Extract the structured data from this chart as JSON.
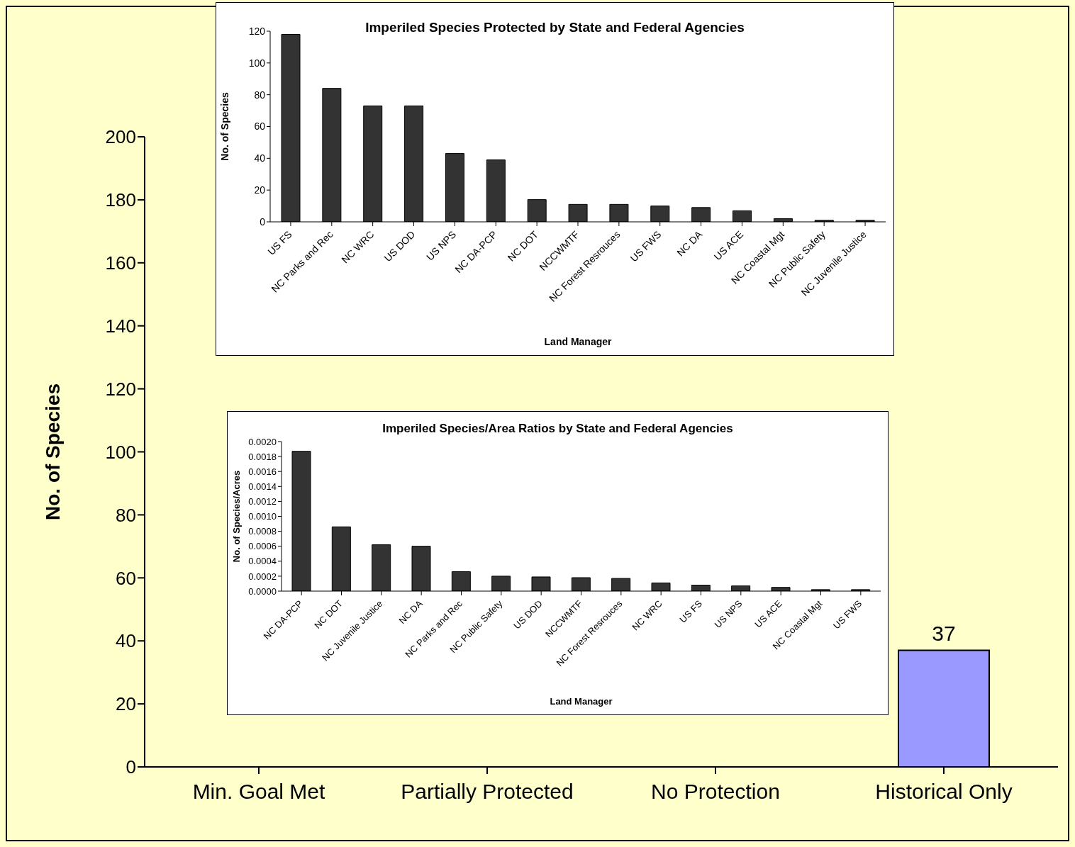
{
  "chart_data": [
    {
      "type": "bar",
      "ylabel": "No. of Species",
      "categories": [
        "Min. Goal Met",
        "Partially Protected",
        "No Protection",
        "Historical Only"
      ],
      "values": [
        null,
        null,
        null,
        37
      ],
      "value_labels": [
        null,
        null,
        null,
        "37"
      ],
      "color": "#9999ff",
      "ylim": [
        0,
        200
      ],
      "yticks": [
        0,
        20,
        40,
        60,
        80,
        100,
        120,
        140,
        160,
        180,
        200
      ]
    },
    {
      "type": "bar",
      "title": "Imperiled Species Protected by State and Federal Agencies",
      "xlabel": "Land Manager",
      "ylabel": "No. of Species",
      "categories": [
        "US FS",
        "NC Parks and Rec",
        "NC WRC",
        "US DOD",
        "US NPS",
        "NC DA-PCP",
        "NC DOT",
        "NCCWMTF",
        "NC Forest Resrouces",
        "US FWS",
        "NC DA",
        "US ACE",
        "NC Coastal Mgt",
        "NC Public Safety",
        "NC Juvenile Justice"
      ],
      "values": [
        118,
        84,
        73,
        73,
        43,
        39,
        14,
        11,
        11,
        10,
        9,
        7,
        2,
        1,
        1
      ],
      "color": "#333333",
      "ylim": [
        0,
        120
      ],
      "yticks": [
        0,
        20,
        40,
        60,
        80,
        100,
        120
      ]
    },
    {
      "type": "bar",
      "title": "Imperiled Species/Area Ratios by State and Federal Agencies",
      "xlabel": "Land Manager",
      "ylabel": "No. of Species/Acres",
      "categories": [
        "NC DA-PCP",
        "NC DOT",
        "NC Juvenile Justice",
        "NC DA",
        "NC Parks and Rec",
        "NC Public Safety",
        "US DOD",
        "NCCWMTF",
        "NC Forest Resrouces",
        "NC WRC",
        "US FS",
        "US NPS",
        "US ACE",
        "NC Coastal Mgt",
        "US FWS"
      ],
      "values": [
        0.00187,
        0.00086,
        0.00062,
        0.0006,
        0.00026,
        0.0002,
        0.00019,
        0.00018,
        0.00017,
        0.00011,
        8e-05,
        7e-05,
        5e-05,
        2e-05,
        2e-05
      ],
      "color": "#333333",
      "ylim": [
        0,
        0.002
      ],
      "yticks": [
        {
          "value": 0,
          "label": "0.0000"
        },
        {
          "value": 0.0002,
          "label": "0.0002"
        },
        {
          "value": 0.0004,
          "label": "0.0004"
        },
        {
          "value": 0.0006,
          "label": "0.0006"
        },
        {
          "value": 0.0008,
          "label": "0.0008"
        },
        {
          "value": 0.001,
          "label": "0.0010"
        },
        {
          "value": 0.0012,
          "label": "0.0012"
        },
        {
          "value": 0.0014,
          "label": "0.0014"
        },
        {
          "value": 0.0016,
          "label": "0.0016"
        },
        {
          "value": 0.0018,
          "label": "0.0018"
        },
        {
          "value": 0.002,
          "label": "0.0020"
        }
      ]
    }
  ]
}
